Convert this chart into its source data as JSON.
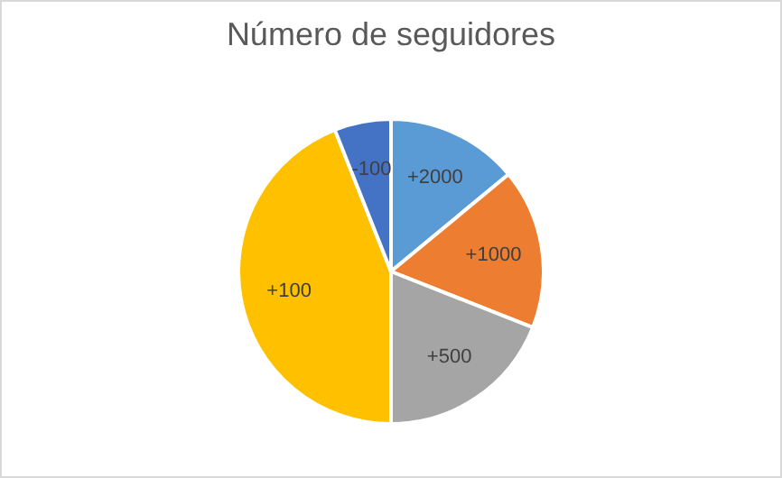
{
  "chart_data": {
    "type": "pie",
    "title": "Número de seguidores",
    "categories": [
      "+2000",
      "+1000",
      "+500",
      "+100",
      "-100"
    ],
    "values": [
      14,
      17,
      19,
      44,
      6
    ],
    "colors": [
      "#5b9bd5",
      "#ed7d31",
      "#a5a5a5",
      "#ffc000",
      "#4472c4"
    ],
    "legend": false
  }
}
